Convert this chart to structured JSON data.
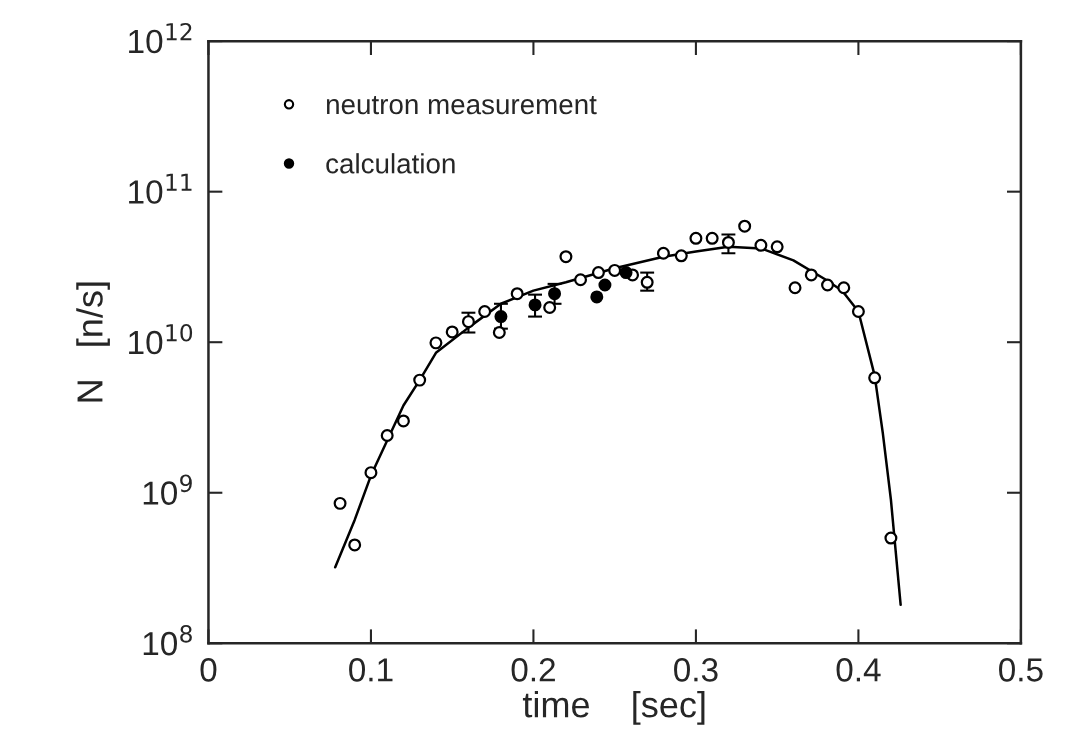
{
  "chart_data": {
    "type": "scatter",
    "xlabel": "time    [sec]",
    "ylabel": "N   [n/s]",
    "log": "y",
    "xlim": [
      0,
      0.5
    ],
    "xticks": [
      0,
      0.1,
      0.2,
      0.3,
      0.4,
      0.5
    ],
    "ylim": [
      100000000.0,
      1000000000000.0
    ],
    "yticks": [
      {
        "value": 100000000.0,
        "label": "10$^{8}$"
      },
      {
        "value": 1000000000.0,
        "label": "10$^{9}$"
      },
      {
        "value": 10000000000.0,
        "label": "10$^{10}$"
      },
      {
        "value": 100000000000.0,
        "label": "10$^{11}$"
      },
      {
        "value": 1000000000000.0,
        "label": "10$^{12}$"
      }
    ],
    "grid": false,
    "legend": "top left",
    "series": [
      {
        "name": "neutron measurement",
        "type": "scatter",
        "marker": "circle",
        "color": "#000000",
        "x": [
          0.081,
          0.09,
          0.1,
          0.11,
          0.12,
          0.13,
          0.14,
          0.15,
          0.16,
          0.17,
          0.179,
          0.19,
          0.21,
          0.22,
          0.229,
          0.24,
          0.25,
          0.261,
          0.27,
          0.28,
          0.291,
          0.3,
          0.31,
          0.32,
          0.33,
          0.34,
          0.35,
          0.361,
          0.371,
          0.381,
          0.391,
          0.4,
          0.41,
          0.42
        ],
        "values": [
          850000000.0,
          450000000.0,
          1360000000.0,
          2400000000.0,
          3000000000.0,
          5600000000.0,
          9900000000.0,
          11700000000.0,
          13700000000.0,
          16000000000.0,
          11600000000.0,
          21000000000.0,
          17000000000.0,
          37000000000.0,
          26000000000.0,
          29000000000.0,
          30000000000.0,
          28000000000.0,
          25000000000.0,
          39000000000.0,
          37500000000.0,
          49000000000.0,
          49000000000.0,
          46000000000.0,
          59000000000.0,
          44000000000.0,
          43000000000.0,
          23000000000.0,
          28000000000.0,
          24000000000.0,
          23000000000.0,
          16000000000.0,
          5800000000.0,
          500000000.0
        ],
        "errors": [
          null,
          null,
          null,
          null,
          null,
          null,
          null,
          null,
          [
            11600000000.0,
            15700000000.0
          ],
          null,
          null,
          null,
          null,
          null,
          null,
          null,
          null,
          null,
          [
            22000000000.0,
            29000000000.0
          ],
          null,
          null,
          null,
          null,
          [
            39000000000.0,
            52000000000.0
          ],
          null,
          null,
          null,
          null,
          null,
          null,
          null,
          null,
          null,
          null
        ]
      },
      {
        "name": "calculation",
        "type": "scatter",
        "marker": "circle",
        "color": "#000000",
        "x": [
          0.18,
          0.201,
          0.213,
          0.239,
          0.244,
          0.257
        ],
        "values": [
          14800000000.0,
          17700000000.0,
          21000000000.0,
          20000000000.0,
          24000000000.0,
          29000000000.0
        ],
        "errors": [
          [
            12300000000.0,
            18000000000.0
          ],
          [
            14800000000.0,
            20700000000.0
          ],
          [
            18000000000.0,
            24400000000.0
          ],
          null,
          null,
          null
        ]
      },
      {
        "type": "line",
        "color": "#000000",
        "marker": "none",
        "line_style": "solid",
        "x": [
          0.078,
          0.09,
          0.1,
          0.12,
          0.13,
          0.14,
          0.16,
          0.18,
          0.2,
          0.22,
          0.25,
          0.28,
          0.3,
          0.32,
          0.34,
          0.36,
          0.38,
          0.39,
          0.4,
          0.41,
          0.415,
          0.42,
          0.426
        ],
        "values": [
          320000000.0,
          660000000.0,
          1300000000.0,
          3800000000.0,
          5600000000.0,
          8500000000.0,
          12500000000.0,
          18000000000.0,
          22000000000.0,
          25000000000.0,
          31000000000.0,
          37000000000.0,
          40000000000.0,
          43000000000.0,
          42000000000.0,
          35000000000.0,
          26000000000.0,
          22000000000.0,
          16000000000.0,
          6000000000.0,
          2500000000.0,
          900000000.0,
          180000000.0
        ]
      }
    ]
  }
}
